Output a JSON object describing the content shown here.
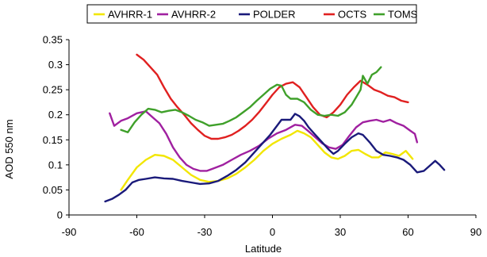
{
  "chart_data": {
    "type": "line",
    "title": "",
    "xlabel": "Latitude",
    "ylabel": "AOD 550 nm",
    "xlim": [
      -90,
      90
    ],
    "ylim": [
      0,
      0.35
    ],
    "xticks": [
      -90,
      -60,
      -30,
      0,
      30,
      60,
      90
    ],
    "xtick_labels": [
      "-90",
      "-60",
      "-30",
      "0",
      "30",
      "60",
      "90"
    ],
    "yticks": [
      0,
      0.05,
      0.1,
      0.15,
      0.2,
      0.25,
      0.3,
      0.35
    ],
    "ytick_labels": [
      "0",
      "0.05",
      "0.1",
      "0.15",
      "0.2",
      "0.25",
      "0.3",
      "0.35"
    ],
    "grid": false,
    "legend_position": "top",
    "series": [
      {
        "name": "AVHRR-1",
        "color": "#f2e600",
        "points": [
          [
            -67,
            0.05
          ],
          [
            -64,
            0.07
          ],
          [
            -60,
            0.095
          ],
          [
            -56,
            0.11
          ],
          [
            -52,
            0.12
          ],
          [
            -48,
            0.118
          ],
          [
            -44,
            0.11
          ],
          [
            -40,
            0.095
          ],
          [
            -36,
            0.08
          ],
          [
            -32,
            0.07
          ],
          [
            -28,
            0.066
          ],
          [
            -24,
            0.068
          ],
          [
            -20,
            0.073
          ],
          [
            -16,
            0.082
          ],
          [
            -12,
            0.095
          ],
          [
            -8,
            0.11
          ],
          [
            -4,
            0.128
          ],
          [
            0,
            0.142
          ],
          [
            4,
            0.152
          ],
          [
            8,
            0.16
          ],
          [
            11,
            0.168
          ],
          [
            14,
            0.163
          ],
          [
            17,
            0.155
          ],
          [
            20,
            0.14
          ],
          [
            23,
            0.125
          ],
          [
            26,
            0.115
          ],
          [
            29,
            0.112
          ],
          [
            32,
            0.118
          ],
          [
            35,
            0.128
          ],
          [
            38,
            0.13
          ],
          [
            41,
            0.122
          ],
          [
            44,
            0.115
          ],
          [
            47,
            0.115
          ],
          [
            50,
            0.125
          ],
          [
            53,
            0.122
          ],
          [
            56,
            0.118
          ],
          [
            59,
            0.128
          ],
          [
            62,
            0.112
          ]
        ]
      },
      {
        "name": "AVHRR-2",
        "color": "#a020a0",
        "points": [
          [
            -72,
            0.203
          ],
          [
            -70,
            0.178
          ],
          [
            -67,
            0.188
          ],
          [
            -64,
            0.193
          ],
          [
            -60,
            0.203
          ],
          [
            -56,
            0.207
          ],
          [
            -53,
            0.195
          ],
          [
            -50,
            0.183
          ],
          [
            -47,
            0.162
          ],
          [
            -44,
            0.135
          ],
          [
            -41,
            0.115
          ],
          [
            -38,
            0.1
          ],
          [
            -35,
            0.092
          ],
          [
            -32,
            0.088
          ],
          [
            -29,
            0.088
          ],
          [
            -26,
            0.093
          ],
          [
            -22,
            0.1
          ],
          [
            -18,
            0.11
          ],
          [
            -14,
            0.12
          ],
          [
            -10,
            0.128
          ],
          [
            -6,
            0.138
          ],
          [
            -2,
            0.152
          ],
          [
            2,
            0.163
          ],
          [
            6,
            0.17
          ],
          [
            10,
            0.18
          ],
          [
            13,
            0.178
          ],
          [
            16,
            0.167
          ],
          [
            19,
            0.155
          ],
          [
            22,
            0.143
          ],
          [
            25,
            0.135
          ],
          [
            28,
            0.132
          ],
          [
            31,
            0.14
          ],
          [
            34,
            0.158
          ],
          [
            37,
            0.175
          ],
          [
            40,
            0.185
          ],
          [
            43,
            0.188
          ],
          [
            46,
            0.19
          ],
          [
            49,
            0.186
          ],
          [
            52,
            0.19
          ],
          [
            55,
            0.183
          ],
          [
            58,
            0.178
          ],
          [
            61,
            0.168
          ],
          [
            63,
            0.162
          ],
          [
            64,
            0.145
          ]
        ]
      },
      {
        "name": "POLDER",
        "color": "#1a1a7a",
        "points": [
          [
            -74,
            0.027
          ],
          [
            -71,
            0.032
          ],
          [
            -68,
            0.04
          ],
          [
            -65,
            0.05
          ],
          [
            -62,
            0.065
          ],
          [
            -59,
            0.07
          ],
          [
            -56,
            0.072
          ],
          [
            -52,
            0.075
          ],
          [
            -48,
            0.073
          ],
          [
            -44,
            0.072
          ],
          [
            -40,
            0.068
          ],
          [
            -36,
            0.065
          ],
          [
            -32,
            0.062
          ],
          [
            -28,
            0.063
          ],
          [
            -24,
            0.068
          ],
          [
            -20,
            0.078
          ],
          [
            -16,
            0.09
          ],
          [
            -12,
            0.105
          ],
          [
            -8,
            0.125
          ],
          [
            -4,
            0.145
          ],
          [
            -1,
            0.16
          ],
          [
            2,
            0.178
          ],
          [
            4,
            0.19
          ],
          [
            6,
            0.19
          ],
          [
            8,
            0.19
          ],
          [
            10,
            0.202
          ],
          [
            12,
            0.197
          ],
          [
            14,
            0.188
          ],
          [
            16,
            0.175
          ],
          [
            19,
            0.16
          ],
          [
            22,
            0.145
          ],
          [
            25,
            0.13
          ],
          [
            27,
            0.122
          ],
          [
            29,
            0.128
          ],
          [
            32,
            0.142
          ],
          [
            35,
            0.155
          ],
          [
            38,
            0.163
          ],
          [
            40,
            0.16
          ],
          [
            43,
            0.145
          ],
          [
            46,
            0.128
          ],
          [
            49,
            0.12
          ],
          [
            52,
            0.118
          ],
          [
            55,
            0.115
          ],
          [
            58,
            0.11
          ],
          [
            61,
            0.1
          ],
          [
            64,
            0.085
          ],
          [
            67,
            0.088
          ],
          [
            70,
            0.1
          ],
          [
            72,
            0.108
          ],
          [
            74,
            0.1
          ],
          [
            76,
            0.09
          ]
        ]
      },
      {
        "name": "OCTS",
        "color": "#e02020",
        "points": [
          [
            -60,
            0.32
          ],
          [
            -57,
            0.31
          ],
          [
            -54,
            0.295
          ],
          [
            -51,
            0.28
          ],
          [
            -48,
            0.255
          ],
          [
            -45,
            0.232
          ],
          [
            -42,
            0.215
          ],
          [
            -39,
            0.2
          ],
          [
            -36,
            0.183
          ],
          [
            -33,
            0.17
          ],
          [
            -30,
            0.158
          ],
          [
            -27,
            0.152
          ],
          [
            -24,
            0.152
          ],
          [
            -21,
            0.155
          ],
          [
            -18,
            0.16
          ],
          [
            -15,
            0.168
          ],
          [
            -12,
            0.178
          ],
          [
            -9,
            0.19
          ],
          [
            -6,
            0.205
          ],
          [
            -3,
            0.222
          ],
          [
            0,
            0.24
          ],
          [
            3,
            0.255
          ],
          [
            6,
            0.262
          ],
          [
            9,
            0.265
          ],
          [
            12,
            0.255
          ],
          [
            15,
            0.235
          ],
          [
            18,
            0.215
          ],
          [
            21,
            0.2
          ],
          [
            24,
            0.195
          ],
          [
            27,
            0.205
          ],
          [
            30,
            0.22
          ],
          [
            33,
            0.24
          ],
          [
            36,
            0.255
          ],
          [
            39,
            0.268
          ],
          [
            42,
            0.26
          ],
          [
            45,
            0.25
          ],
          [
            48,
            0.245
          ],
          [
            51,
            0.238
          ],
          [
            54,
            0.235
          ],
          [
            57,
            0.228
          ],
          [
            60,
            0.225
          ]
        ]
      },
      {
        "name": "TOMS",
        "color": "#3fa02a",
        "points": [
          [
            -67,
            0.17
          ],
          [
            -64,
            0.165
          ],
          [
            -61,
            0.185
          ],
          [
            -58,
            0.2
          ],
          [
            -55,
            0.212
          ],
          [
            -52,
            0.21
          ],
          [
            -49,
            0.205
          ],
          [
            -46,
            0.208
          ],
          [
            -43,
            0.21
          ],
          [
            -40,
            0.205
          ],
          [
            -37,
            0.198
          ],
          [
            -34,
            0.19
          ],
          [
            -31,
            0.185
          ],
          [
            -28,
            0.178
          ],
          [
            -25,
            0.18
          ],
          [
            -22,
            0.182
          ],
          [
            -19,
            0.188
          ],
          [
            -16,
            0.195
          ],
          [
            -13,
            0.205
          ],
          [
            -10,
            0.215
          ],
          [
            -7,
            0.228
          ],
          [
            -4,
            0.24
          ],
          [
            -1,
            0.252
          ],
          [
            2,
            0.26
          ],
          [
            4,
            0.258
          ],
          [
            6,
            0.24
          ],
          [
            8,
            0.232
          ],
          [
            11,
            0.232
          ],
          [
            14,
            0.225
          ],
          [
            17,
            0.21
          ],
          [
            20,
            0.2
          ],
          [
            23,
            0.198
          ],
          [
            26,
            0.2
          ],
          [
            29,
            0.198
          ],
          [
            32,
            0.205
          ],
          [
            35,
            0.22
          ],
          [
            37,
            0.235
          ],
          [
            39,
            0.25
          ],
          [
            40,
            0.278
          ],
          [
            42,
            0.262
          ],
          [
            44,
            0.28
          ],
          [
            46,
            0.285
          ],
          [
            48,
            0.295
          ]
        ]
      }
    ]
  }
}
